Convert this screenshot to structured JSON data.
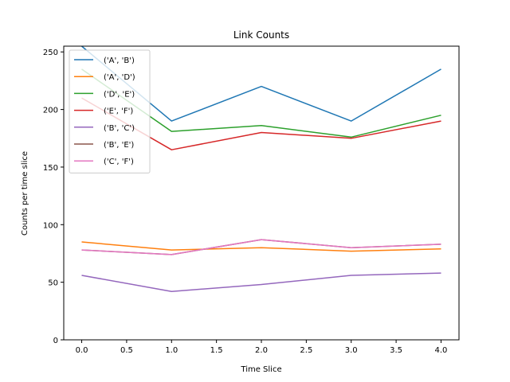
{
  "chart_data": {
    "type": "line",
    "title": "Link Counts",
    "xlabel": "Time Slice",
    "ylabel": "Counts per time slice",
    "x": [
      0,
      1,
      2,
      3,
      4
    ],
    "xlim": [
      -0.2,
      4.2
    ],
    "ylim": [
      0,
      255
    ],
    "xticks": [
      0.0,
      0.5,
      1.0,
      1.5,
      2.0,
      2.5,
      3.0,
      3.5,
      4.0
    ],
    "xtick_labels": [
      "0.0",
      "0.5",
      "1.0",
      "1.5",
      "2.0",
      "2.5",
      "3.0",
      "3.5",
      "4.0"
    ],
    "yticks": [
      0,
      50,
      100,
      150,
      200,
      250
    ],
    "ytick_labels": [
      "0",
      "50",
      "100",
      "150",
      "200",
      "250"
    ],
    "grid": false,
    "legend": "top-left",
    "series": [
      {
        "name": "('A', 'B')",
        "color": "#1f77b4",
        "values": [
          255,
          190,
          220,
          190,
          235
        ]
      },
      {
        "name": "('A', 'D')",
        "color": "#ff7f0e",
        "values": [
          85,
          78,
          80,
          77,
          79
        ]
      },
      {
        "name": "('D', 'E')",
        "color": "#2ca02c",
        "values": [
          235,
          181,
          186,
          176,
          195
        ]
      },
      {
        "name": "('E', 'F')",
        "color": "#d62728",
        "values": [
          210,
          165,
          180,
          175,
          190
        ]
      },
      {
        "name": "('B', 'C')",
        "color": "#9467bd",
        "values": [
          56,
          42,
          48,
          56,
          58
        ]
      },
      {
        "name": "('B', 'E')",
        "color": "#8c564b",
        "values": [
          78,
          74,
          87,
          80,
          83
        ]
      },
      {
        "name": "('C', 'F')",
        "color": "#e377c2",
        "values": [
          78,
          74,
          87,
          80,
          83
        ]
      }
    ]
  }
}
